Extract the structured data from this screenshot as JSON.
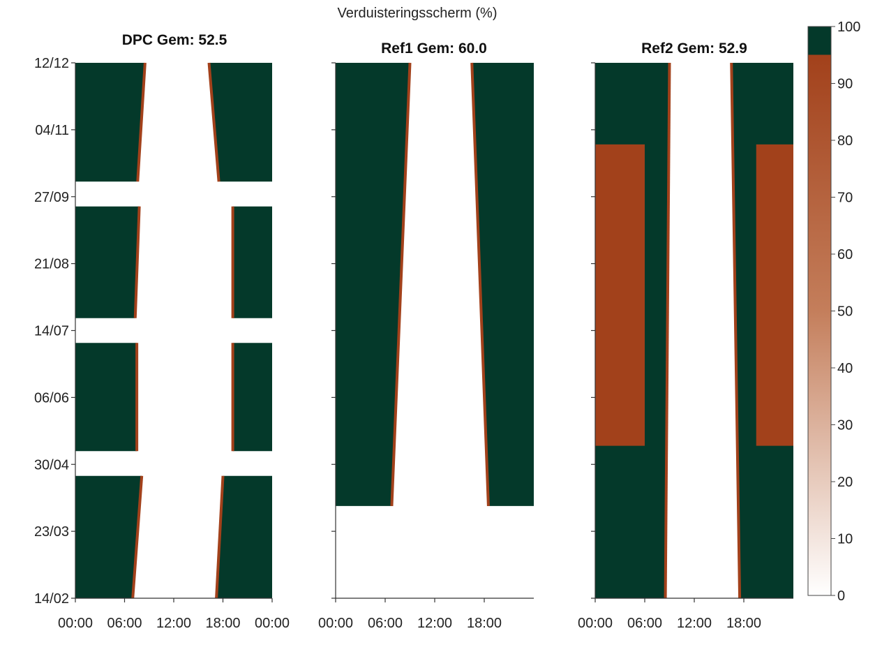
{
  "chart_data": {
    "type": "heatmap",
    "title": "Verduisteringsscherm (%)",
    "colors": {
      "dark": "#04392a",
      "brown": "#a2411b",
      "light": "#ffffff",
      "mid": "#c98d6c"
    },
    "colorbar": {
      "min": 0,
      "max": 100,
      "ticks": [
        0,
        10,
        20,
        30,
        40,
        50,
        60,
        70,
        80,
        90,
        100
      ]
    },
    "y_ticks": [
      "12/12",
      "04/11",
      "27/09",
      "21/08",
      "14/07",
      "06/06",
      "30/04",
      "23/03",
      "14/02"
    ],
    "panels": [
      {
        "title": "DPC Gem: 52.5",
        "x_ticks": [
          "00:00",
          "06:00",
          "12:00",
          "18:00",
          "00:00"
        ],
        "mean": 52.5,
        "bands": [
          {
            "date_from": "2024-02-14",
            "date_to": "2024-04-23",
            "close_h": [
              17.2,
              18.0
            ],
            "open_h": [
              7.0,
              8.1
            ],
            "fill": "dark"
          },
          {
            "date_from": "2024-05-07",
            "date_to": "2024-07-07",
            "close_h": [
              19.2,
              19.2
            ],
            "open_h": [
              7.5,
              7.5
            ],
            "fill": "dark"
          },
          {
            "date_from": "2024-07-21",
            "date_to": "2024-09-22",
            "close_h": [
              19.2,
              19.2
            ],
            "open_h": [
              7.3,
              7.8
            ],
            "fill": "dark"
          },
          {
            "date_from": "2024-10-06",
            "date_to": "2024-12-12",
            "close_h": [
              17.5,
              16.3
            ],
            "open_h": [
              7.6,
              8.5
            ],
            "fill": "dark"
          }
        ]
      },
      {
        "title": "Ref1 Gem: 60.0",
        "x_ticks": [
          "00:00",
          "06:00",
          "12:00",
          "18:00"
        ],
        "mean": 60.0,
        "bands": [
          {
            "date_from": "2024-04-06",
            "date_to": "2024-12-12",
            "close_h": [
              18.5,
              16.5
            ],
            "open_h": [
              6.8,
              9.0
            ],
            "fill": "dark"
          }
        ]
      },
      {
        "title": "Ref2 Gem: 52.9",
        "x_ticks": [
          "00:00",
          "06:00",
          "12:00",
          "18:00"
        ],
        "mean": 52.9,
        "bands": [
          {
            "date_from": "2024-02-14",
            "date_to": "2024-12-12",
            "close_h": [
              17.5,
              16.5
            ],
            "open_h": [
              8.5,
              9.0
            ],
            "fill": "dark"
          },
          {
            "date_from": "2024-05-10",
            "date_to": "2024-10-27",
            "close_h": [
              19.5,
              19.5
            ],
            "open_h": [
              6.0,
              6.0
            ],
            "fill": "brown"
          }
        ]
      }
    ],
    "grid": false,
    "legend": "colorbar-right"
  }
}
